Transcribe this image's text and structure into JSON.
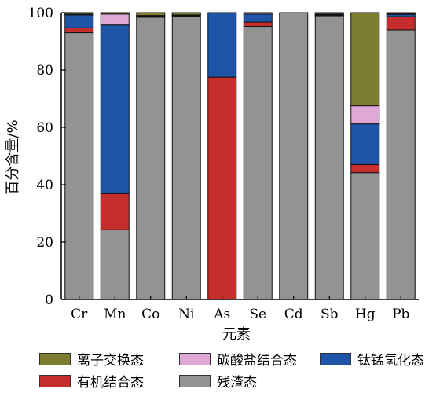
{
  "chart_data": {
    "type": "bar",
    "stacked": true,
    "ylabel": "百分含量/%",
    "xlabel": "元素",
    "ylim": [
      0,
      100
    ],
    "yticks": [
      0,
      20,
      40,
      60,
      80,
      100
    ],
    "categories": [
      "Cr",
      "Mn",
      "Co",
      "Ni",
      "As",
      "Se",
      "Cd",
      "Sb",
      "Hg",
      "Pb"
    ],
    "stack_order_bottom_to_top": [
      "残渣态",
      "有机结合态",
      "钛锰氢化态",
      "碳酸盐结合态",
      "离子交换态"
    ],
    "series": [
      {
        "name": "离子交换态",
        "color": "#7c7d31",
        "values": [
          0.5,
          0.5,
          1.0,
          0.8,
          0,
          0,
          0,
          0.5,
          32.5,
          0.3
        ]
      },
      {
        "name": "碳酸盐结合态",
        "color": "#e0a9d5",
        "values": [
          0.3,
          3.8,
          0.2,
          0.2,
          0,
          0.5,
          0,
          0.2,
          6.3,
          0.3
        ]
      },
      {
        "name": "钛锰氢化态",
        "color": "#1f55a8",
        "values": [
          4.5,
          58.8,
          0.2,
          0.3,
          22.5,
          2.8,
          0,
          0.3,
          14.2,
          0.8
        ]
      },
      {
        "name": "有机结合态",
        "color": "#c62d2d",
        "values": [
          1.7,
          12.6,
          0.2,
          0.2,
          77.5,
          1.5,
          0,
          0.1,
          2.8,
          4.6
        ]
      },
      {
        "name": "残渣态",
        "color": "#939393",
        "values": [
          93.0,
          24.3,
          98.4,
          98.5,
          0,
          95.2,
          100,
          98.9,
          44.2,
          94.0
        ]
      }
    ],
    "legend": {
      "position": "bottom",
      "rows": [
        [
          "离子交换态",
          "碳酸盐结合态",
          "钛锰氢化态"
        ],
        [
          "有机结合态",
          "残渣态"
        ]
      ]
    }
  }
}
